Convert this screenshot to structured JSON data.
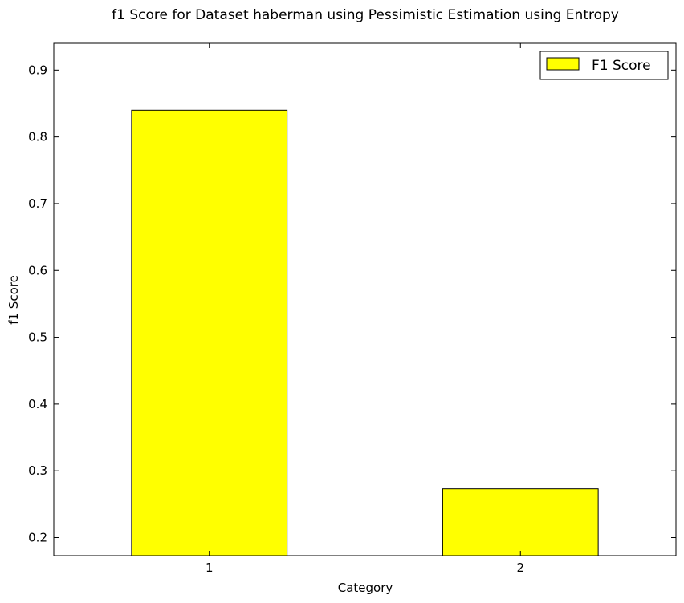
{
  "chart_data": {
    "type": "bar",
    "title": "f1 Score for Dataset haberman using Pessimistic Estimation using Entropy",
    "xlabel": "Category",
    "ylabel": "f1 Score",
    "categories": [
      "1",
      "2"
    ],
    "series": [
      {
        "name": "F1 Score",
        "values": [
          0.84,
          0.273
        ]
      }
    ],
    "ylim": [
      0.173,
      0.94
    ],
    "yticks": [
      "0.2",
      "0.3",
      "0.4",
      "0.5",
      "0.6",
      "0.7",
      "0.8",
      "0.9"
    ],
    "bar_color": "#ffff00",
    "grid": false,
    "legend_position": "top-right"
  }
}
